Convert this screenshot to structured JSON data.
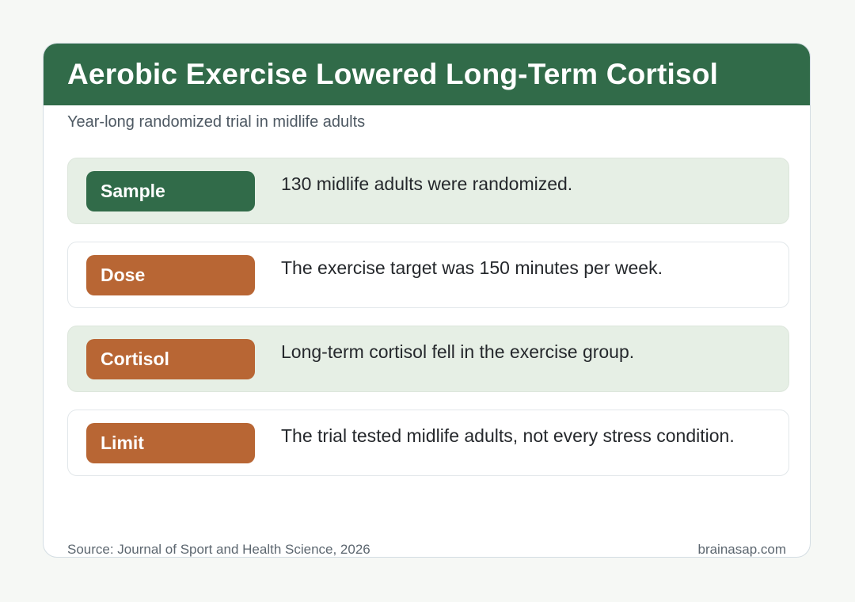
{
  "header": {
    "title": "Aerobic Exercise Lowered Long-Term Cortisol",
    "subtitle": "Year-long randomized trial in midlife adults"
  },
  "rows": [
    {
      "label": "Sample",
      "text": "130 midlife adults were randomized.",
      "badge_color": "#316b49"
    },
    {
      "label": "Dose",
      "text": "The exercise target was 150 minutes per week.",
      "badge_color": "#b86634"
    },
    {
      "label": "Cortisol",
      "text": "Long-term cortisol fell in the exercise group.",
      "badge_color": "#b86634"
    },
    {
      "label": "Limit",
      "text": "The trial tested midlife adults, not every stress condition.",
      "badge_color": "#b86634"
    }
  ],
  "footer": {
    "source": "Source: Journal of Sport and Health Science, 2026",
    "site": "brainasap.com"
  },
  "colors": {
    "header_bg": "#316b49",
    "shaded_row_bg": "#e6efe5",
    "page_bg": "#f6f8f5"
  }
}
